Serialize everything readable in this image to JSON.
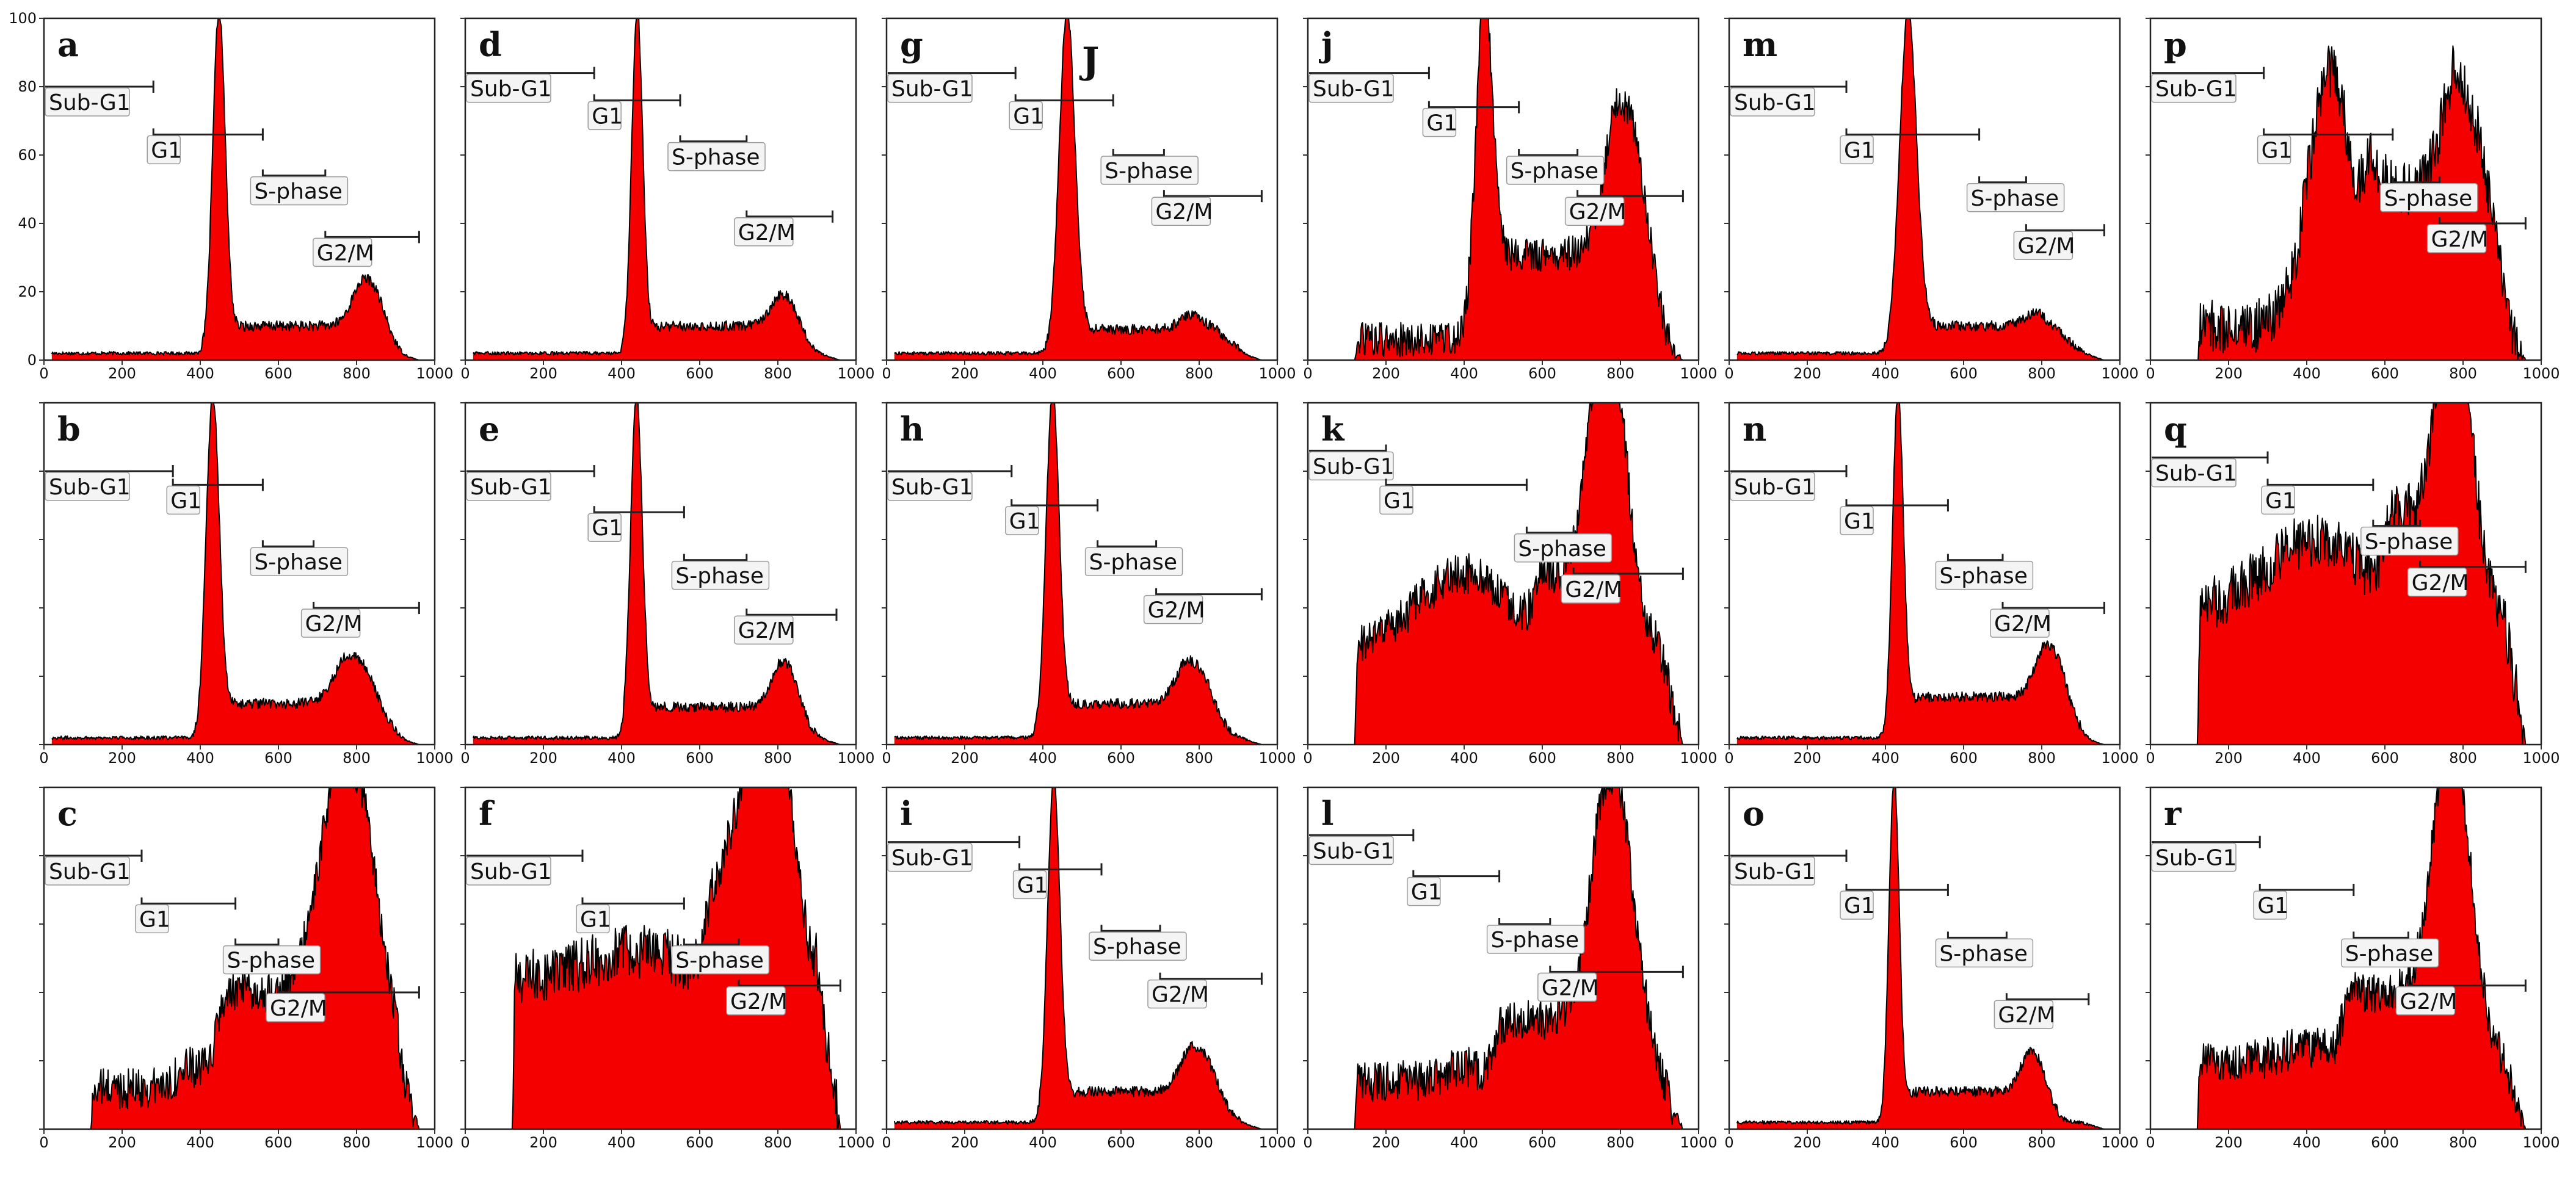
{
  "chart_data": {
    "type": "histogram-grid",
    "x_ticks": [
      "0",
      "200",
      "400",
      "600",
      "800",
      "1000"
    ],
    "y_ticks": [
      "0",
      "20",
      "40",
      "60",
      "80",
      "100"
    ],
    "xlim": [
      0,
      1000
    ],
    "ylim": [
      0,
      100
    ],
    "gate_labels": {
      "subg1": "Sub-G1",
      "g1": "G1",
      "s": "S-phase",
      "g2m": "G2/M"
    },
    "colors": {
      "fill": "#f40000",
      "edge": "#000000"
    },
    "panels": [
      {
        "letter": "a",
        "extra": "",
        "start": 20,
        "bg": 2,
        "g1": {
          "pos": 448,
          "h": 100,
          "w": 16
        },
        "g2": {
          "pos": 835,
          "h": 20,
          "w": 35
        },
        "s": 8,
        "noise": 1.5,
        "gates": {
          "subg1": [
            0,
            280,
            80
          ],
          "g1": [
            280,
            560,
            66
          ],
          "s": [
            560,
            720,
            54
          ],
          "g2m": [
            720,
            960,
            36
          ]
        }
      },
      {
        "letter": "b",
        "extra": "",
        "start": 20,
        "bg": 2,
        "g1": {
          "pos": 432,
          "h": 100,
          "w": 17
        },
        "g2": {
          "pos": 805,
          "h": 22,
          "w": 45
        },
        "s": 10,
        "noise": 1.5,
        "gates": {
          "subg1": [
            0,
            330,
            80
          ],
          "g1": [
            330,
            560,
            76
          ],
          "s": [
            560,
            690,
            58
          ],
          "g2m": [
            690,
            960,
            40
          ]
        }
      },
      {
        "letter": "c",
        "extra": "",
        "start": 120,
        "bg": 12,
        "g1": {
          "pos": 380,
          "h": 6,
          "w": 40
        },
        "g2": {
          "pos": 790,
          "h": 92,
          "w": 65
        },
        "s": 28,
        "noise": 6,
        "gates": {
          "subg1": [
            0,
            250,
            80
          ],
          "g1": [
            250,
            490,
            66
          ],
          "s": [
            490,
            600,
            54
          ],
          "g2m": [
            600,
            960,
            40
          ]
        }
      },
      {
        "letter": "d",
        "extra": "",
        "start": 20,
        "bg": 2,
        "g1": {
          "pos": 440,
          "h": 100,
          "w": 14
        },
        "g2": {
          "pos": 825,
          "h": 15,
          "w": 32
        },
        "s": 8,
        "noise": 1.5,
        "gates": {
          "subg1": [
            0,
            330,
            84
          ],
          "g1": [
            330,
            550,
            76
          ],
          "s": [
            550,
            720,
            64
          ],
          "g2m": [
            720,
            940,
            42
          ]
        }
      },
      {
        "letter": "e",
        "extra": "",
        "start": 20,
        "bg": 2,
        "g1": {
          "pos": 438,
          "h": 100,
          "w": 15
        },
        "g2": {
          "pos": 825,
          "h": 20,
          "w": 32
        },
        "s": 9,
        "noise": 1.5,
        "gates": {
          "subg1": [
            0,
            330,
            80
          ],
          "g1": [
            330,
            560,
            68
          ],
          "s": [
            560,
            720,
            54
          ],
          "g2m": [
            720,
            950,
            38
          ]
        }
      },
      {
        "letter": "f",
        "extra": "",
        "start": 120,
        "bg": 44,
        "g1": {
          "pos": 440,
          "h": 8,
          "w": 120
        },
        "g2": {
          "pos": 780,
          "h": 88,
          "w": 50
        },
        "s": 30,
        "noise": 8,
        "gates": {
          "subg1": [
            0,
            300,
            80
          ],
          "g1": [
            300,
            560,
            66
          ],
          "s": [
            560,
            700,
            54
          ],
          "g2m": [
            700,
            960,
            42
          ]
        }
      },
      {
        "letter": "g",
        "extra": "J",
        "start": 20,
        "bg": 2,
        "g1": {
          "pos": 462,
          "h": 100,
          "w": 20
        },
        "g2": {
          "pos": 820,
          "h": 8,
          "w": 45
        },
        "s": 7,
        "noise": 1.5,
        "gates": {
          "subg1": [
            0,
            330,
            84
          ],
          "g1": [
            330,
            580,
            76
          ],
          "s": [
            580,
            710,
            60
          ],
          "g2m": [
            710,
            960,
            48
          ]
        }
      },
      {
        "letter": "h",
        "extra": "",
        "start": 20,
        "bg": 2,
        "g1": {
          "pos": 425,
          "h": 100,
          "w": 17
        },
        "g2": {
          "pos": 795,
          "h": 20,
          "w": 40
        },
        "s": 10,
        "noise": 1.5,
        "gates": {
          "subg1": [
            0,
            320,
            80
          ],
          "g1": [
            320,
            540,
            70
          ],
          "s": [
            540,
            690,
            58
          ],
          "g2m": [
            690,
            960,
            44
          ]
        }
      },
      {
        "letter": "i",
        "extra": "",
        "start": 20,
        "bg": 2,
        "g1": {
          "pos": 428,
          "h": 100,
          "w": 16
        },
        "g2": {
          "pos": 805,
          "h": 20,
          "w": 40
        },
        "s": 9,
        "noise": 1.5,
        "gates": {
          "subg1": [
            0,
            340,
            84
          ],
          "g1": [
            340,
            550,
            76
          ],
          "s": [
            550,
            700,
            58
          ],
          "g2m": [
            700,
            960,
            44
          ]
        }
      },
      {
        "letter": "j",
        "extra": "",
        "start": 120,
        "bg": 6,
        "g1": {
          "pos": 452,
          "h": 100,
          "w": 22
        },
        "g2": {
          "pos": 820,
          "h": 65,
          "w": 45
        },
        "s": 25,
        "noise": 5,
        "gates": {
          "subg1": [
            0,
            310,
            84
          ],
          "g1": [
            310,
            540,
            74
          ],
          "s": [
            540,
            690,
            60
          ],
          "g2m": [
            690,
            960,
            48
          ]
        }
      },
      {
        "letter": "k",
        "extra": "",
        "start": 120,
        "bg": 28,
        "g1": {
          "pos": 400,
          "h": 22,
          "w": 120
        },
        "g2": {
          "pos": 770,
          "h": 92,
          "w": 45
        },
        "s": 18,
        "noise": 6,
        "gates": {
          "subg1": [
            0,
            200,
            86
          ],
          "g1": [
            200,
            560,
            76
          ],
          "s": [
            560,
            680,
            62
          ],
          "g2m": [
            680,
            960,
            50
          ]
        }
      },
      {
        "letter": "l",
        "extra": "",
        "start": 120,
        "bg": 14,
        "g1": {
          "pos": 400,
          "h": 4,
          "w": 50
        },
        "g2": {
          "pos": 785,
          "h": 88,
          "w": 50
        },
        "s": 18,
        "noise": 6,
        "gates": {
          "subg1": [
            0,
            270,
            86
          ],
          "g1": [
            270,
            490,
            74
          ],
          "s": [
            490,
            620,
            60
          ],
          "g2m": [
            620,
            960,
            46
          ]
        }
      },
      {
        "letter": "m",
        "extra": "",
        "start": 20,
        "bg": 2,
        "g1": {
          "pos": 458,
          "h": 100,
          "w": 22
        },
        "g2": {
          "pos": 820,
          "h": 8,
          "w": 40
        },
        "s": 8,
        "noise": 1.5,
        "gates": {
          "subg1": [
            0,
            300,
            80
          ],
          "g1": [
            300,
            640,
            66
          ],
          "s": [
            640,
            760,
            52
          ],
          "g2m": [
            760,
            960,
            38
          ]
        }
      },
      {
        "letter": "n",
        "extra": "",
        "start": 20,
        "bg": 2,
        "g1": {
          "pos": 432,
          "h": 100,
          "w": 14
        },
        "g2": {
          "pos": 830,
          "h": 24,
          "w": 35
        },
        "s": 12,
        "noise": 1.5,
        "gates": {
          "subg1": [
            0,
            300,
            80
          ],
          "g1": [
            300,
            560,
            70
          ],
          "s": [
            560,
            700,
            54
          ],
          "g2m": [
            700,
            960,
            40
          ]
        }
      },
      {
        "letter": "o",
        "extra": "",
        "start": 20,
        "bg": 2,
        "g1": {
          "pos": 422,
          "h": 100,
          "w": 13
        },
        "g2": {
          "pos": 785,
          "h": 18,
          "w": 30
        },
        "s": 9,
        "noise": 1.5,
        "gates": {
          "subg1": [
            0,
            300,
            80
          ],
          "g1": [
            300,
            560,
            70
          ],
          "s": [
            560,
            710,
            56
          ],
          "g2m": [
            710,
            920,
            38
          ]
        }
      },
      {
        "letter": "p",
        "extra": "",
        "start": 120,
        "bg": 10,
        "g1": {
          "pos": 460,
          "h": 75,
          "w": 55
        },
        "g2": {
          "pos": 820,
          "h": 60,
          "w": 50
        },
        "s": 40,
        "noise": 8,
        "gates": {
          "subg1": [
            0,
            290,
            84
          ],
          "g1": [
            290,
            620,
            66
          ],
          "s": [
            620,
            740,
            52
          ],
          "g2m": [
            740,
            960,
            40
          ]
        }
      },
      {
        "letter": "q",
        "extra": "",
        "start": 120,
        "bg": 40,
        "g1": {
          "pos": 420,
          "h": 20,
          "w": 120
        },
        "g2": {
          "pos": 780,
          "h": 90,
          "w": 40
        },
        "s": 25,
        "noise": 8,
        "gates": {
          "subg1": [
            0,
            300,
            84
          ],
          "g1": [
            300,
            570,
            76
          ],
          "s": [
            570,
            690,
            64
          ],
          "g2m": [
            690,
            960,
            52
          ]
        }
      },
      {
        "letter": "r",
        "extra": "",
        "start": 120,
        "bg": 20,
        "g1": {
          "pos": 400,
          "h": 4,
          "w": 60
        },
        "g2": {
          "pos": 775,
          "h": 92,
          "w": 45
        },
        "s": 20,
        "noise": 6,
        "gates": {
          "subg1": [
            0,
            280,
            84
          ],
          "g1": [
            280,
            520,
            70
          ],
          "s": [
            520,
            660,
            56
          ],
          "g2m": [
            660,
            960,
            42
          ]
        }
      }
    ]
  }
}
